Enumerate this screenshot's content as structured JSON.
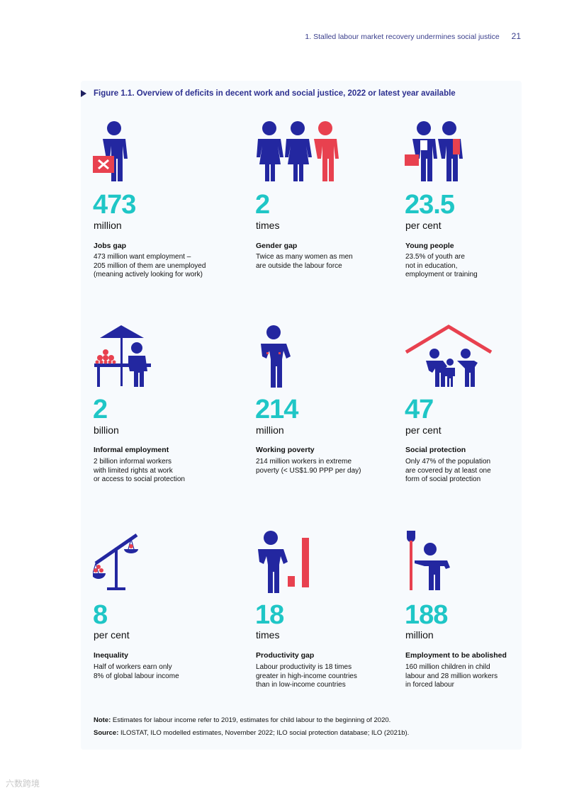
{
  "header": {
    "running_title": "1. Stalled labour market recovery undermines social justice",
    "page_number": "21"
  },
  "figure": {
    "title": "Figure 1.1.  Overview of deficits in decent work and social justice, 2022 or latest year available"
  },
  "colors": {
    "navy": "#2327a0",
    "red": "#e8414f",
    "teal": "#1fc6c6",
    "panel": "#f7fafd"
  },
  "cells": [
    {
      "value": "473",
      "unit": "million",
      "label": "Jobs gap",
      "lines": [
        "473 million want employment –",
        "205 million of them are unemployed",
        "(meaning actively looking for work)"
      ],
      "icon": "person-with-x-box-icon"
    },
    {
      "value": "2",
      "unit": "times",
      "label": "Gender gap",
      "lines": [
        "Twice as many women as men",
        "are outside the labour force"
      ],
      "icon": "gender-group-icon"
    },
    {
      "value": "23.5",
      "unit": "per cent",
      "label": "Young people",
      "lines": [
        "23.5% of youth are",
        "not in education,",
        "employment or training"
      ],
      "icon": "young-people-icon"
    },
    {
      "value": "2",
      "unit": "billion",
      "label": "Informal employment",
      "lines": [
        "2 billion informal workers",
        "with limited rights at work",
        "or access to social protection"
      ],
      "icon": "street-vendor-icon"
    },
    {
      "value": "214",
      "unit": "million",
      "label": "Working poverty",
      "lines": [
        "214 million workers in extreme",
        "poverty (< US$1.90 PPP per day)"
      ],
      "icon": "poor-worker-icon"
    },
    {
      "value": "47",
      "unit": "per cent",
      "label": "Social protection",
      "lines": [
        "Only 47% of the population",
        "are covered by at least one",
        "form of social protection"
      ],
      "icon": "family-under-roof-icon"
    },
    {
      "value": "8",
      "unit": "per cent",
      "label": "Inequality",
      "lines": [
        "Half of workers earn only",
        "8% of global labour income"
      ],
      "icon": "balance-scale-icon"
    },
    {
      "value": "18",
      "unit": "times",
      "label": "Productivity gap",
      "lines": [
        "Labour productivity is 18 times",
        "greater in high-income countries",
        "than in low-income countries"
      ],
      "icon": "productivity-bars-icon"
    },
    {
      "value": "188",
      "unit": "million",
      "label": "Employment to be abolished",
      "lines": [
        "160 million children in child",
        "labour and 28 million workers",
        "in forced labour"
      ],
      "icon": "child-with-shovel-icon"
    }
  ],
  "note": {
    "note_label": "Note:",
    "note_text": "Estimates for labour income refer to 2019, estimates for child labour to the beginning of 2020.",
    "source_label": "Source:",
    "source_text": "ILOSTAT, ILO modelled estimates, November 2022; ILO social protection database; ILO (2021b)."
  },
  "watermark": "六数跨境"
}
